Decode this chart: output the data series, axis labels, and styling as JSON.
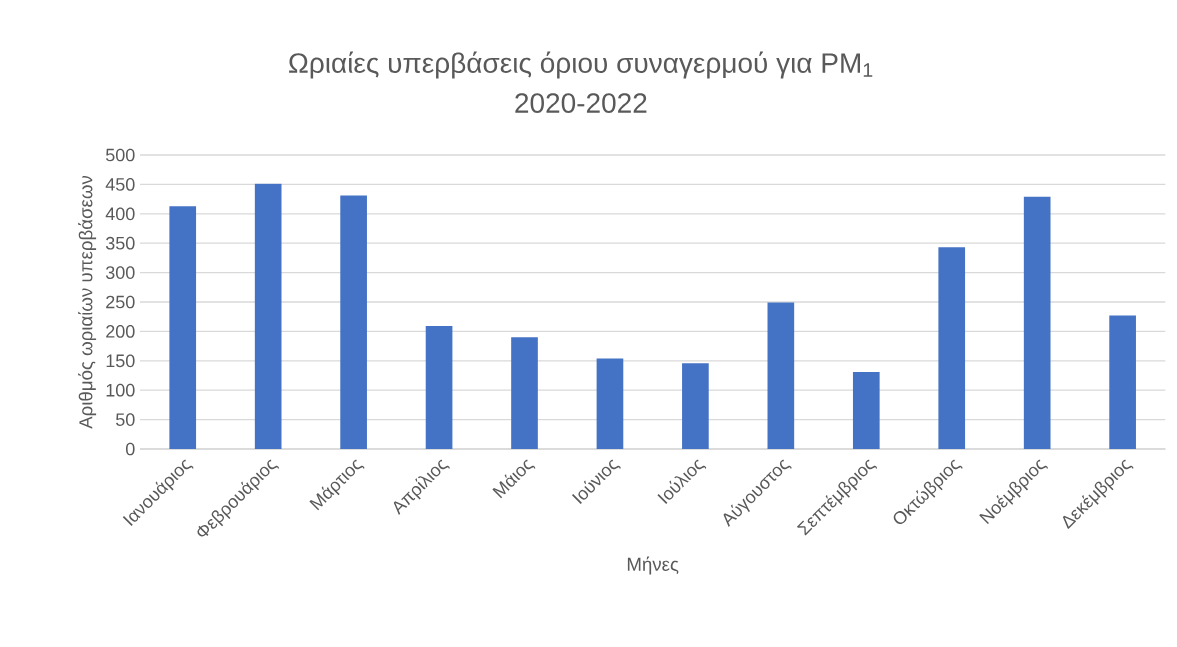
{
  "chart_data": {
    "type": "bar",
    "title": "Ωριαίες υπερβάσεις όριου συναγερμού για PM$_{1}$",
    "subtitle": "2020-2022",
    "xlabel": "Μήνες",
    "ylabel": "Αριθμός ωριαίων υπερβάσεων",
    "categories": [
      "Ιανουάριος",
      "Φεβρουάριος",
      "Μάρτιος",
      "Απρίλιος",
      "Μάιος",
      "Ιούνιος",
      "Ιούλιος",
      "Αύγουστος",
      "Σεπτέμβριος",
      "Οκτώβριος",
      "Νοέμβριος",
      "Δεκέμβριος"
    ],
    "values": [
      413,
      451,
      431,
      209,
      190,
      154,
      146,
      249,
      131,
      343,
      429,
      227
    ],
    "color": "#4472c4",
    "ylim": [
      0,
      500
    ],
    "yticks": [
      0,
      50,
      100,
      150,
      200,
      250,
      300,
      350,
      400,
      450,
      500
    ],
    "grid": "y"
  }
}
